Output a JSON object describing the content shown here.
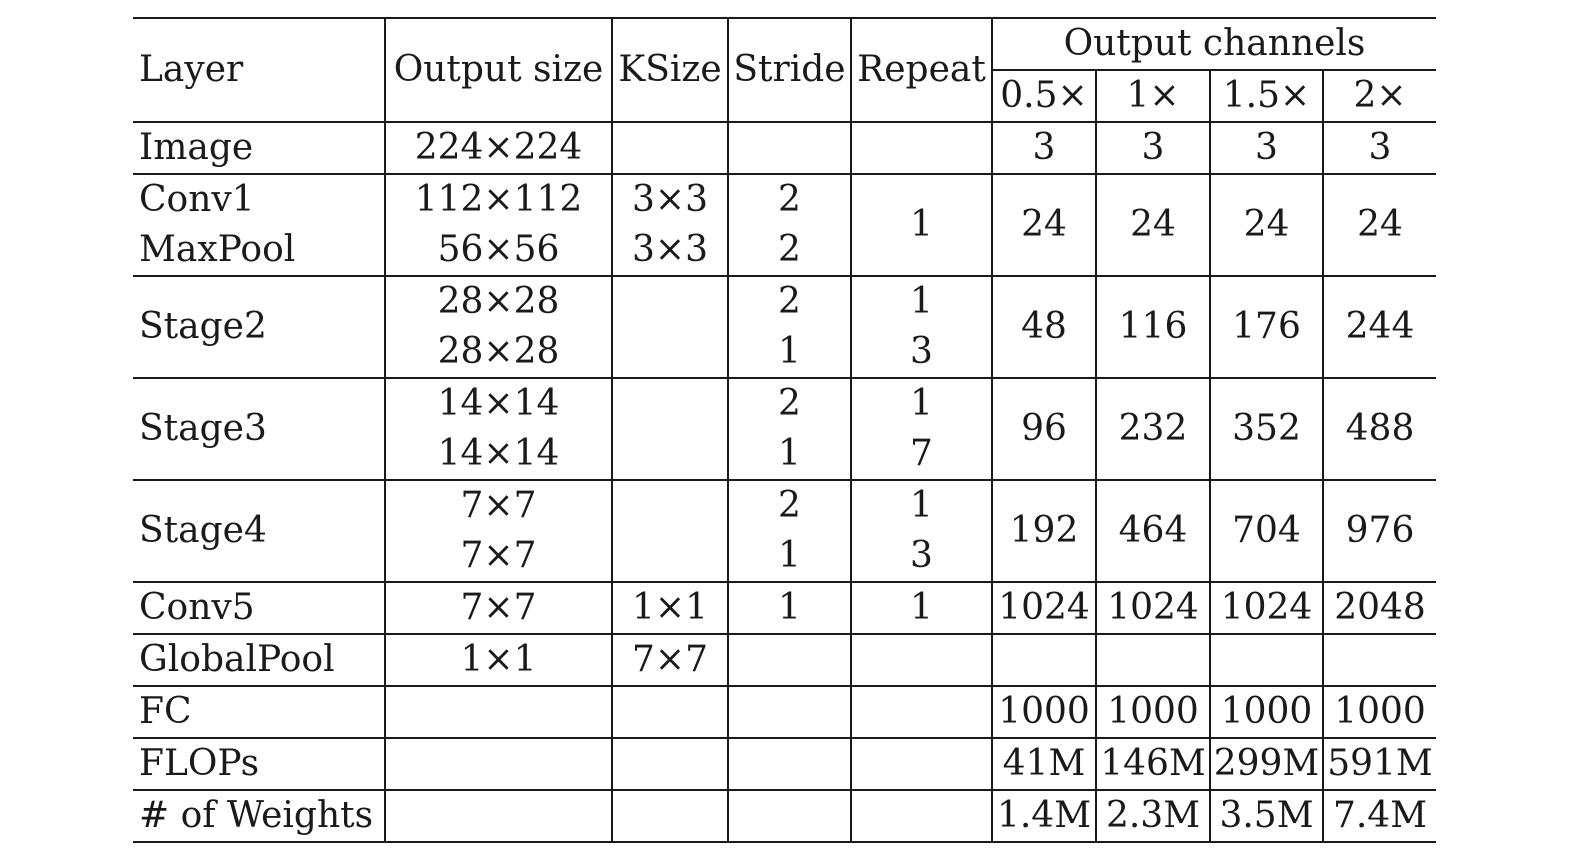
{
  "header": {
    "layer": "Layer",
    "output_size": "Output size",
    "ksize": "KSize",
    "stride": "Stride",
    "repeat": "Repeat",
    "output_channels": "Output channels",
    "multipliers": [
      "0.5×",
      "1×",
      "1.5×",
      "2×"
    ]
  },
  "rows": {
    "image": {
      "layer": "Image",
      "output_size": "224×224",
      "channels": [
        "3",
        "3",
        "3",
        "3"
      ]
    },
    "conv1_maxpool": {
      "layers": [
        "Conv1",
        "MaxPool"
      ],
      "output_sizes": [
        "112×112",
        "56×56"
      ],
      "ksizes": [
        "3×3",
        "3×3"
      ],
      "strides": [
        "2",
        "2"
      ],
      "repeat": "1",
      "channels": [
        "24",
        "24",
        "24",
        "24"
      ]
    },
    "stage2": {
      "layer": "Stage2",
      "output_sizes": [
        "28×28",
        "28×28"
      ],
      "strides": [
        "2",
        "1"
      ],
      "repeats": [
        "1",
        "3"
      ],
      "channels": [
        "48",
        "116",
        "176",
        "244"
      ]
    },
    "stage3": {
      "layer": "Stage3",
      "output_sizes": [
        "14×14",
        "14×14"
      ],
      "strides": [
        "2",
        "1"
      ],
      "repeats": [
        "1",
        "7"
      ],
      "channels": [
        "96",
        "232",
        "352",
        "488"
      ]
    },
    "stage4": {
      "layer": "Stage4",
      "output_sizes": [
        "7×7",
        "7×7"
      ],
      "strides": [
        "2",
        "1"
      ],
      "repeats": [
        "1",
        "3"
      ],
      "channels": [
        "192",
        "464",
        "704",
        "976"
      ]
    },
    "conv5": {
      "layer": "Conv5",
      "output_size": "7×7",
      "ksize": "1×1",
      "stride": "1",
      "repeat": "1",
      "channels": [
        "1024",
        "1024",
        "1024",
        "2048"
      ]
    },
    "globalpool": {
      "layer": "GlobalPool",
      "output_size": "1×1",
      "ksize": "7×7"
    },
    "fc": {
      "layer": "FC",
      "channels": [
        "1000",
        "1000",
        "1000",
        "1000"
      ]
    },
    "flops": {
      "layer": "FLOPs",
      "values": [
        "41M",
        "146M",
        "299M",
        "591M"
      ]
    },
    "weights": {
      "layer": "# of Weights",
      "values": [
        "1.4M",
        "2.3M",
        "3.5M",
        "7.4M"
      ]
    }
  }
}
